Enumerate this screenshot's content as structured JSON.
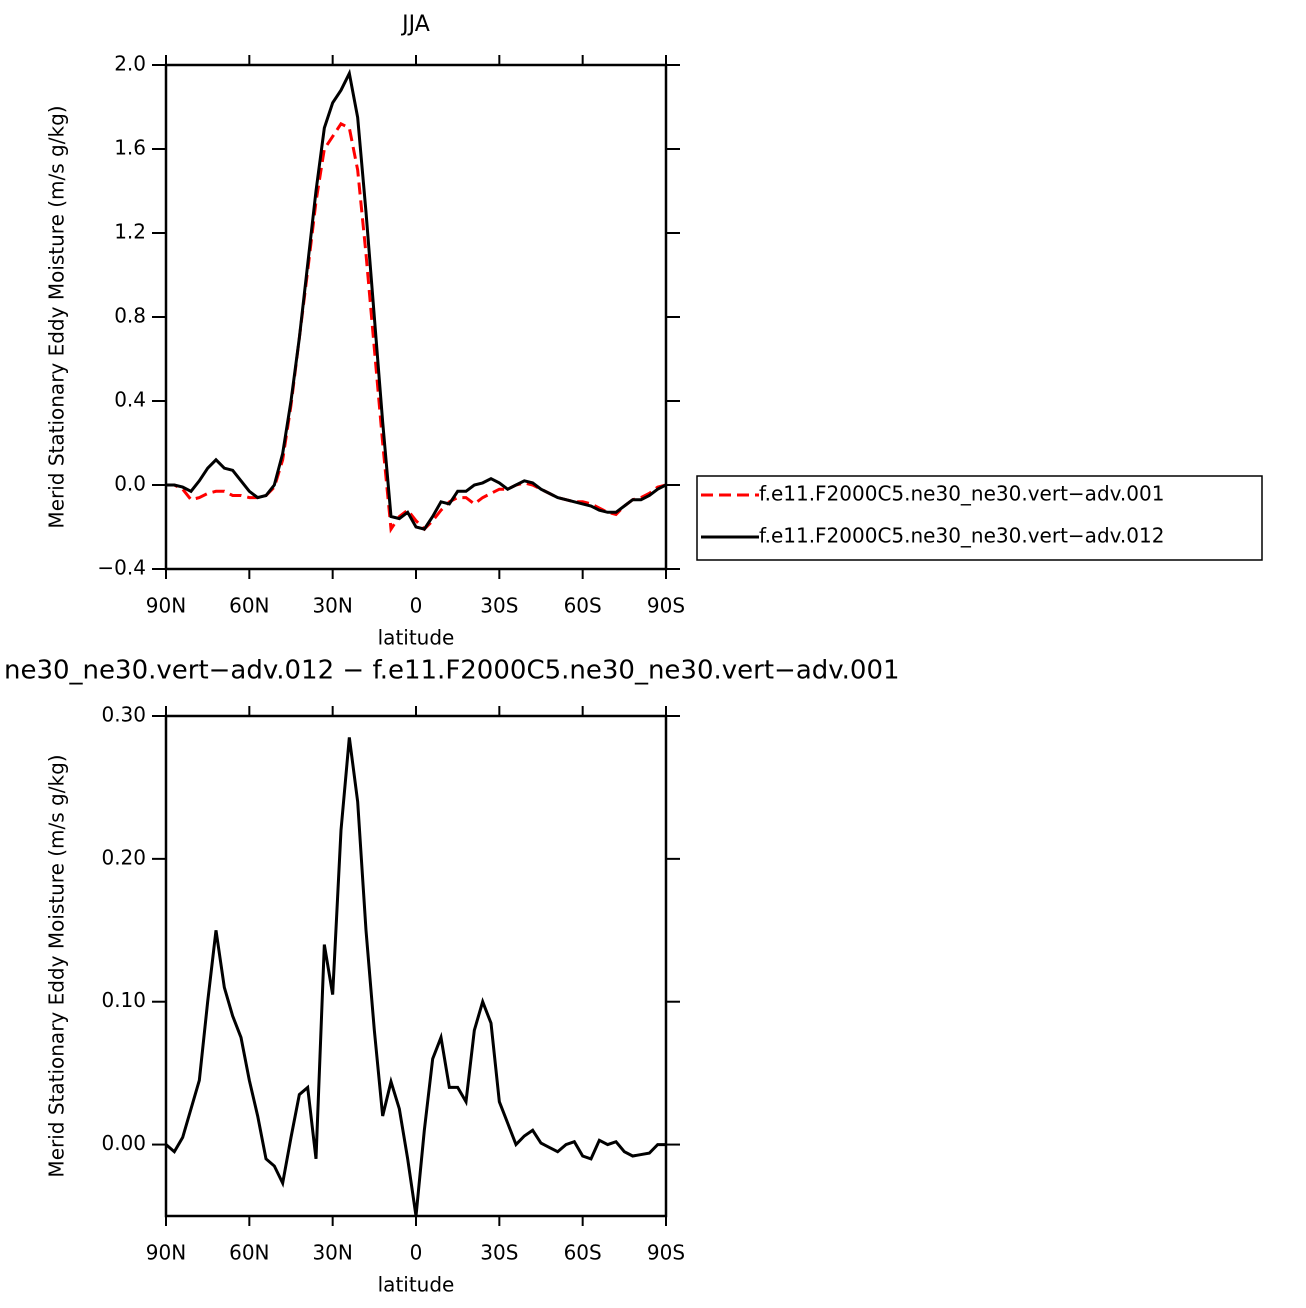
{
  "chart_data": [
    {
      "type": "line",
      "title": "JJA",
      "x_label": "latitude",
      "y_label": "Merid Stationary Eddy Moisture (m/s g/kg)",
      "x": [
        90,
        87,
        84,
        81,
        78,
        75,
        72,
        69,
        66,
        63,
        60,
        57,
        54,
        51,
        48,
        45,
        42,
        39,
        36,
        33,
        30,
        27,
        24,
        21,
        18,
        15,
        12,
        9,
        6,
        3,
        0,
        -3,
        -6,
        -9,
        -12,
        -15,
        -18,
        -21,
        -24,
        -27,
        -30,
        -33,
        -36,
        -39,
        -42,
        -45,
        -48,
        -51,
        -54,
        -57,
        -60,
        -63,
        -66,
        -69,
        -72,
        -75,
        -78,
        -81,
        -84,
        -87,
        -90
      ],
      "series": [
        {
          "name": "f.e11.F2000C5.ne30_ne30.vert−adv.001",
          "color": "#ff0000",
          "line_style": "dashed",
          "values": [
            0,
            0,
            -0.02,
            -0.07,
            -0.06,
            -0.04,
            -0.03,
            -0.03,
            -0.05,
            -0.05,
            -0.06,
            -0.06,
            -0.05,
            -0.01,
            0.12,
            0.38,
            0.7,
            1.02,
            1.35,
            1.6,
            1.66,
            1.72,
            1.7,
            1.5,
            1.1,
            0.65,
            0.2,
            -0.21,
            -0.15,
            -0.12,
            -0.17,
            -0.21,
            -0.17,
            -0.12,
            -0.08,
            -0.06,
            -0.06,
            -0.09,
            -0.06,
            -0.04,
            -0.02,
            -0.02,
            0,
            0.01,
            0,
            -0.02,
            -0.04,
            -0.06,
            -0.07,
            -0.08,
            -0.08,
            -0.09,
            -0.11,
            -0.13,
            -0.14,
            -0.1,
            -0.07,
            -0.06,
            -0.04,
            -0.01,
            0
          ]
        },
        {
          "name": "f.e11.F2000C5.ne30_ne30.vert−adv.012",
          "color": "#000000",
          "line_style": "solid",
          "values": [
            0,
            0,
            -0.01,
            -0.03,
            0.02,
            0.08,
            0.12,
            0.08,
            0.07,
            0.02,
            -0.03,
            -0.06,
            -0.05,
            0,
            0.15,
            0.4,
            0.7,
            1.05,
            1.4,
            1.7,
            1.82,
            1.88,
            1.96,
            1.75,
            1.3,
            0.8,
            0.3,
            -0.15,
            -0.16,
            -0.13,
            -0.2,
            -0.21,
            -0.15,
            -0.08,
            -0.09,
            -0.03,
            -0.03,
            0,
            0.01,
            0.03,
            0.01,
            -0.02,
            0,
            0.02,
            0.01,
            -0.02,
            -0.04,
            -0.06,
            -0.07,
            -0.08,
            -0.09,
            -0.1,
            -0.12,
            -0.13,
            -0.13,
            -0.1,
            -0.07,
            -0.07,
            -0.05,
            -0.02,
            0
          ]
        }
      ],
      "xlim": [
        90,
        -90
      ],
      "xticks": [
        {
          "value": 90,
          "label": "90N"
        },
        {
          "value": 60,
          "label": "60N"
        },
        {
          "value": 30,
          "label": "30N"
        },
        0,
        {
          "value": -30,
          "label": "30S"
        },
        {
          "value": -60,
          "label": "60S"
        },
        {
          "value": -90,
          "label": "90S"
        }
      ],
      "ylim": [
        -0.4,
        2.0
      ],
      "yticks": [
        {
          "value": -0.4,
          "label": "−0.4"
        },
        {
          "value": 0,
          "label": "0.0"
        },
        0.4,
        0.8,
        1.2,
        1.6,
        {
          "value": 2.0,
          "label": "2.0"
        }
      ],
      "legend": "right"
    },
    {
      "type": "line",
      "title": "ne30_ne30.vert−adv.012 − f.e11.F2000C5.ne30_ne30.vert−adv.001",
      "x_label": "latitude",
      "y_label": "Merid Stationary Eddy Moisture (m/s g/kg)",
      "x": [
        90,
        87,
        84,
        81,
        78,
        75,
        72,
        69,
        66,
        63,
        60,
        57,
        54,
        51,
        48,
        45,
        42,
        39,
        36,
        33,
        30,
        27,
        24,
        21,
        18,
        15,
        12,
        9,
        6,
        3,
        0,
        -3,
        -6,
        -9,
        -12,
        -15,
        -18,
        -21,
        -24,
        -27,
        -30,
        -33,
        -36,
        -39,
        -42,
        -45,
        -48,
        -51,
        -54,
        -57,
        -60,
        -63,
        -66,
        -69,
        -72,
        -75,
        -78,
        -81,
        -84,
        -87,
        -90
      ],
      "series": [
        {
          "color": "#000000",
          "line_style": "solid",
          "values": [
            0,
            -0.005,
            0.005,
            0.025,
            0.045,
            0.1,
            0.15,
            0.11,
            0.09,
            0.075,
            0.045,
            0.02,
            -0.01,
            -0.015,
            -0.027,
            0.005,
            0.035,
            0.04,
            -0.01,
            0.14,
            0.105,
            0.22,
            0.285,
            0.24,
            0.15,
            0.08,
            0.02,
            0.044,
            0.025,
            -0.01,
            -0.05,
            0.01,
            0.06,
            0.075,
            0.04,
            0.04,
            0.03,
            0.08,
            0.1,
            0.085,
            0.03,
            0.015,
            0,
            0.006,
            0.01,
            0.001,
            -0.002,
            -0.005,
            0,
            0.002,
            -0.008,
            -0.01,
            0.003,
            0,
            0.002,
            -0.005,
            -0.008,
            -0.007,
            -0.006,
            0,
            0
          ]
        }
      ],
      "xlim": [
        90,
        -90
      ],
      "xticks": [
        {
          "value": 90,
          "label": "90N"
        },
        {
          "value": 60,
          "label": "60N"
        },
        {
          "value": 30,
          "label": "30N"
        },
        0,
        {
          "value": -30,
          "label": "30S"
        },
        {
          "value": -60,
          "label": "60S"
        },
        {
          "value": -90,
          "label": "90S"
        }
      ],
      "ylim": [
        -0.05,
        0.3
      ],
      "yticks": [
        {
          "value": 0,
          "label": "0.00"
        },
        {
          "value": 0.1,
          "label": "0.10"
        },
        {
          "value": 0.2,
          "label": "0.20"
        },
        {
          "value": 0.3,
          "label": "0.30"
        }
      ]
    }
  ]
}
